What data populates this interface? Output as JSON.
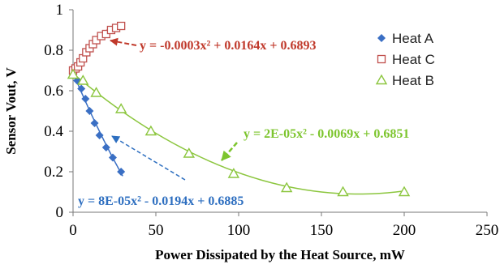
{
  "chart_data": {
    "type": "scatter",
    "xlabel": "Power Dissipated by the Heat Source, mW",
    "ylabel": "Sensor Vout, V",
    "xlim": [
      0,
      250
    ],
    "ylim": [
      0,
      1
    ],
    "x_ticks": [
      "0",
      "50",
      "100",
      "150",
      "200",
      "250"
    ],
    "y_ticks": [
      "0",
      "0.2",
      "0.4",
      "0.6",
      "0.8",
      "1"
    ],
    "grid": false,
    "legend_position": "top-right",
    "series": [
      {
        "name": "Heat A",
        "marker": "diamond",
        "color": "#3a6fc4",
        "x": [
          0,
          2.5,
          5,
          7.5,
          10,
          13,
          16,
          20,
          24,
          29
        ],
        "y": [
          0.68,
          0.65,
          0.61,
          0.56,
          0.5,
          0.44,
          0.38,
          0.32,
          0.27,
          0.2
        ],
        "trendline": {
          "a": 8e-05,
          "b": -0.0194,
          "c": 0.6885,
          "x_range": [
            0,
            30
          ]
        }
      },
      {
        "name": "Heat C",
        "marker": "square",
        "color": "#c0504d",
        "x": [
          0,
          1.5,
          3,
          4.5,
          6,
          8,
          10,
          12,
          14,
          17,
          20,
          23,
          26,
          29
        ],
        "y": [
          0.7,
          0.71,
          0.72,
          0.74,
          0.76,
          0.79,
          0.81,
          0.83,
          0.85,
          0.87,
          0.88,
          0.9,
          0.91,
          0.92
        ],
        "trendline": {
          "a": -0.0003,
          "b": 0.0164,
          "c": 0.6893,
          "x_range": [
            0,
            30
          ]
        }
      },
      {
        "name": "Heat B",
        "marker": "triangle",
        "color": "#8cc63f",
        "x": [
          0,
          6,
          14,
          29,
          47,
          70,
          97,
          129,
          163,
          200
        ],
        "y": [
          0.68,
          0.65,
          0.59,
          0.51,
          0.4,
          0.29,
          0.19,
          0.12,
          0.1,
          0.1
        ],
        "trendline": {
          "a": 2e-05,
          "b": -0.0069,
          "c": 0.6851,
          "x_range": [
            0,
            200
          ]
        }
      }
    ],
    "annotations": [
      {
        "text": "y = -0.0003x² + 0.0164x + 0.6893",
        "color": "#c0392b"
      },
      {
        "text": "y = 2E-05x² - 0.0069x + 0.6851",
        "color": "#7dc52e"
      },
      {
        "text": "y = 8E-05x² - 0.0194x + 0.6885",
        "color": "#2e6fc0"
      }
    ]
  }
}
